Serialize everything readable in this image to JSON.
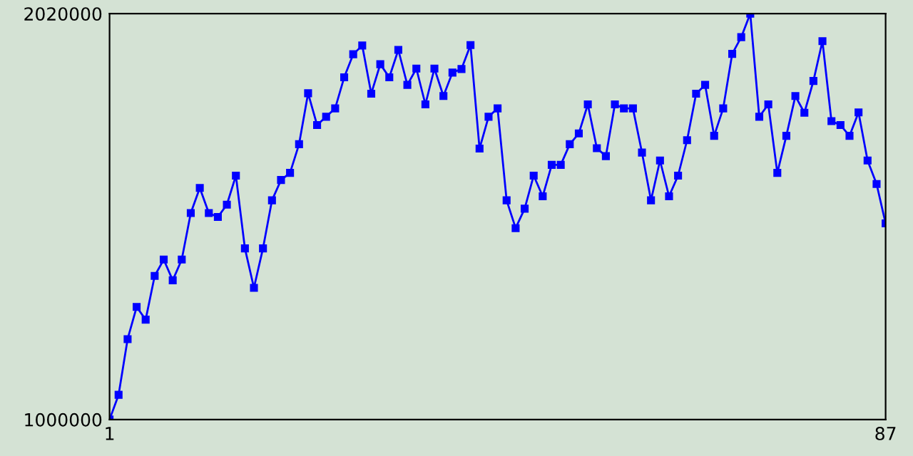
{
  "chart_data": {
    "type": "line",
    "x": [
      1,
      2,
      3,
      4,
      5,
      6,
      7,
      8,
      9,
      10,
      11,
      12,
      13,
      14,
      15,
      16,
      17,
      18,
      19,
      20,
      21,
      22,
      23,
      24,
      25,
      26,
      27,
      28,
      29,
      30,
      31,
      32,
      33,
      34,
      35,
      36,
      37,
      38,
      39,
      40,
      41,
      42,
      43,
      44,
      45,
      46,
      47,
      48,
      49,
      50,
      51,
      52,
      53,
      54,
      55,
      56,
      57,
      58,
      59,
      60,
      61,
      62,
      63,
      64,
      65,
      66,
      67,
      68,
      69,
      70,
      71,
      72,
      73,
      74,
      75,
      76,
      77,
      78,
      79,
      80,
      81,
      82,
      83,
      84,
      85,
      86,
      87
    ],
    "series": [
      {
        "color": "#0000ff",
        "values": [
          1000000,
          1062000,
          1202000,
          1283000,
          1251000,
          1361000,
          1402000,
          1350000,
          1402000,
          1519000,
          1582000,
          1519000,
          1509000,
          1540000,
          1613000,
          1430000,
          1331000,
          1430000,
          1551000,
          1602000,
          1620000,
          1692000,
          1820000,
          1740000,
          1761000,
          1782000,
          1860000,
          1918000,
          1940000,
          1819000,
          1893000,
          1860000,
          1929000,
          1841000,
          1882000,
          1792000,
          1882000,
          1813000,
          1872000,
          1881000,
          1941000,
          1681000,
          1761000,
          1782000,
          1551000,
          1481000,
          1530000,
          1613000,
          1561000,
          1640000,
          1640000,
          1692000,
          1719000,
          1792000,
          1682000,
          1662000,
          1792000,
          1782000,
          1782000,
          1671000,
          1551000,
          1651000,
          1561000,
          1613000,
          1702000,
          1819000,
          1841000,
          1713000,
          1782000,
          1919000,
          1961000,
          2020000,
          1761000,
          1792000,
          1620000,
          1713000,
          1813000,
          1771000,
          1851000,
          1951000,
          1750000,
          1740000,
          1713000,
          1772000,
          1651000,
          1592000,
          1493000
        ]
      }
    ],
    "xlim": [
      1,
      87
    ],
    "xticks": [
      1,
      87
    ],
    "ylim": [
      1000000,
      2020000
    ],
    "yticks": [
      1000000,
      2020000
    ],
    "marker": "square",
    "line_style": "solid",
    "grid": false,
    "legend": false
  }
}
